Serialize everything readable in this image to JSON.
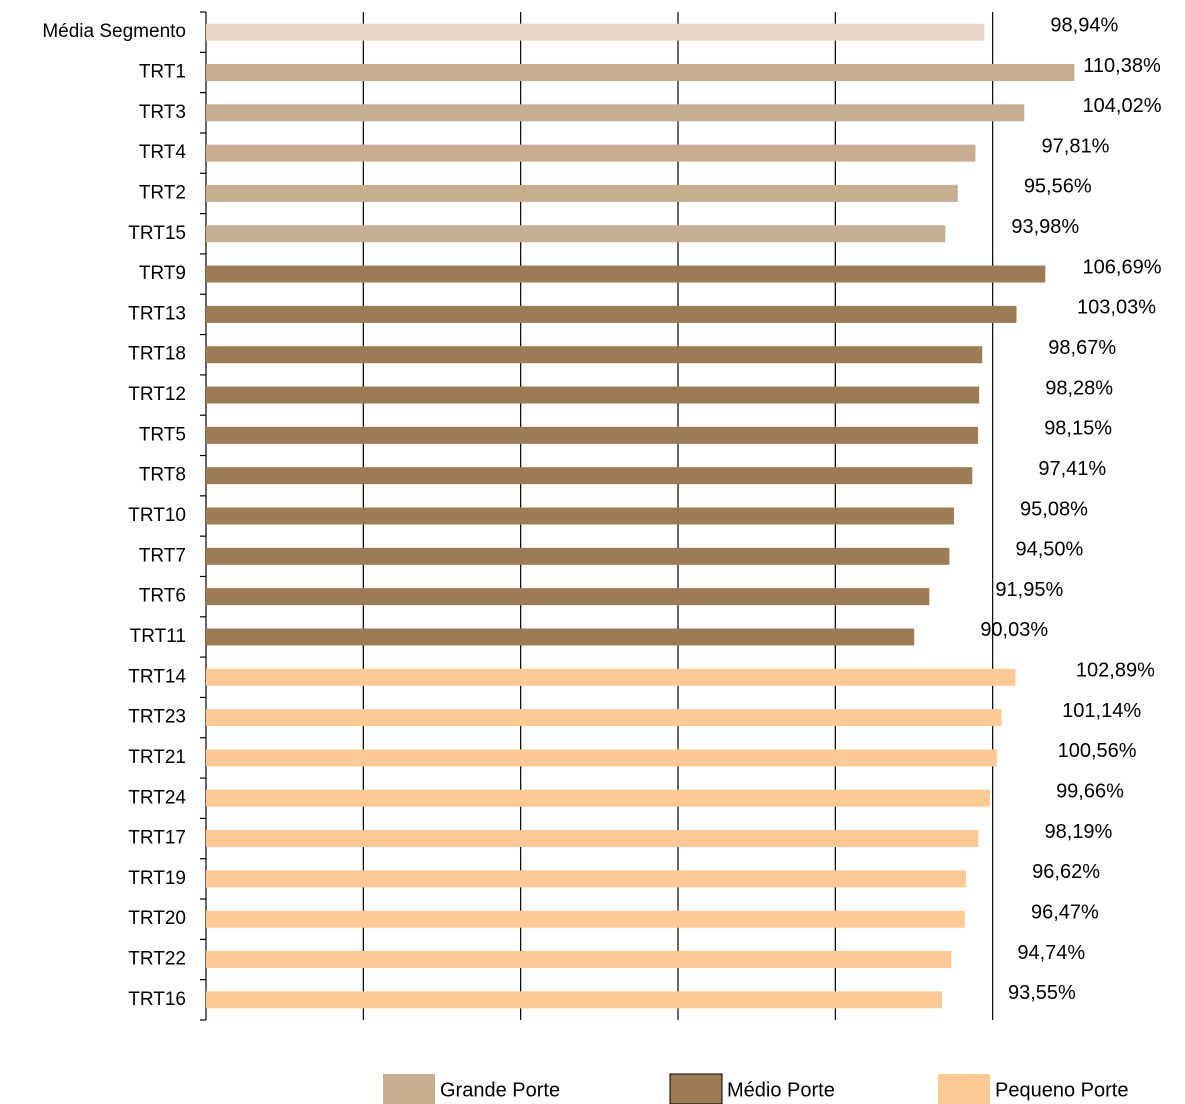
{
  "chart_data": {
    "type": "bar",
    "orientation": "horizontal",
    "categories": [
      "Média Segmento",
      "TRT1",
      "TRT3",
      "TRT4",
      "TRT2",
      "TRT15",
      "TRT9",
      "TRT13",
      "TRT18",
      "TRT12",
      "TRT5",
      "TRT8",
      "TRT10",
      "TRT7",
      "TRT6",
      "TRT11",
      "TRT14",
      "TRT23",
      "TRT21",
      "TRT24",
      "TRT17",
      "TRT19",
      "TRT20",
      "TRT22",
      "TRT16"
    ],
    "values": [
      98.94,
      110.38,
      104.02,
      97.81,
      95.56,
      93.98,
      106.69,
      103.03,
      98.67,
      98.28,
      98.15,
      97.41,
      95.08,
      94.5,
      91.95,
      90.03,
      102.89,
      101.14,
      100.56,
      99.66,
      98.19,
      96.62,
      96.47,
      94.74,
      93.55
    ],
    "value_labels": [
      "98,94%",
      "110,38%",
      "104,02%",
      "97,81%",
      "95,56%",
      "93,98%",
      "106,69%",
      "103,03%",
      "98,67%",
      "98,28%",
      "98,15%",
      "97,41%",
      "95,08%",
      "94,50%",
      "91,95%",
      "90,03%",
      "102,89%",
      "101,14%",
      "100,56%",
      "99,66%",
      "98,19%",
      "96,62%",
      "96,47%",
      "94,74%",
      "93,55%"
    ],
    "colors": [
      "#e8d6c2",
      "#c8ae90",
      "#c8ae90",
      "#c8ae90",
      "#c8ae90",
      "#c8ae90",
      "#9b7c55",
      "#9b7c55",
      "#9b7c55",
      "#9b7c55",
      "#9b7c55",
      "#9b7c55",
      "#9b7c55",
      "#9b7c55",
      "#9b7c55",
      "#9b7c55",
      "#fdca95",
      "#fdca95",
      "#fdca95",
      "#fdca95",
      "#fdca95",
      "#fdca95",
      "#fdca95",
      "#fdca95",
      "#fdca95"
    ],
    "legend": [
      {
        "name": "Grande Porte",
        "color": "#c8ae90"
      },
      {
        "name": "Médio Porte",
        "color": "#9b7c55"
      },
      {
        "name": "Pequeno Porte",
        "color": "#fdca95"
      }
    ],
    "xlim": [
      0,
      120
    ],
    "xticks": [
      0,
      20,
      40,
      60,
      80,
      100
    ],
    "grid": true
  }
}
